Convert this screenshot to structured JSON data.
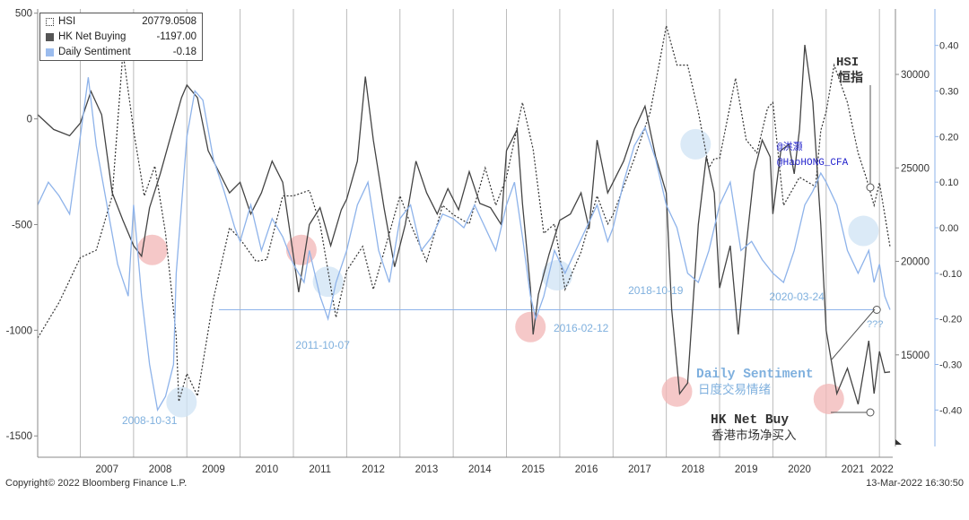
{
  "chart_data": {
    "type": "line",
    "x_tick_labels": [
      "2007",
      "2008",
      "2009",
      "2010",
      "2011",
      "2012",
      "2013",
      "2014",
      "2015",
      "2016",
      "2017",
      "2018",
      "2019",
      "2020",
      "2021",
      "2022"
    ],
    "left_axis": {
      "ticks": [
        "500",
        "0",
        "-500",
        "-1000",
        "-1500"
      ],
      "range": [
        -1550,
        520
      ]
    },
    "right_axis_hsi": {
      "ticks": [
        "30000",
        "25000",
        "20000",
        "15000"
      ],
      "range": [
        10100,
        33500
      ]
    },
    "right_axis_sentiment": {
      "ticks": [
        "0.40",
        "0.30",
        "0.20",
        "0.10",
        "0.00",
        "-0.10",
        "-0.20",
        "-0.30",
        "-0.40"
      ],
      "range": [
        -0.48,
        0.48
      ]
    },
    "legend": [
      {
        "name": "HSI",
        "value": "20779.0508"
      },
      {
        "name": "HK Net Buying",
        "value": "-1197.00"
      },
      {
        "name": "Daily Sentiment",
        "value": "-0.18"
      }
    ],
    "series": [
      {
        "name": "HSI",
        "axis": "hsi",
        "style": "dotted",
        "color": "#333333",
        "points": [
          [
            2006.2,
            15900
          ],
          [
            2006.6,
            17800
          ],
          [
            2007.0,
            20200
          ],
          [
            2007.3,
            20600
          ],
          [
            2007.6,
            23500
          ],
          [
            2007.8,
            31200
          ],
          [
            2008.0,
            27000
          ],
          [
            2008.2,
            23500
          ],
          [
            2008.4,
            25100
          ],
          [
            2008.6,
            21500
          ],
          [
            2008.8,
            16000
          ],
          [
            2008.85,
            12500
          ],
          [
            2009.0,
            14000
          ],
          [
            2009.2,
            12800
          ],
          [
            2009.5,
            18000
          ],
          [
            2009.8,
            21800
          ],
          [
            2010.0,
            21200
          ],
          [
            2010.3,
            20000
          ],
          [
            2010.5,
            20100
          ],
          [
            2010.8,
            23500
          ],
          [
            2011.0,
            23500
          ],
          [
            2011.3,
            23800
          ],
          [
            2011.5,
            22000
          ],
          [
            2011.8,
            17000
          ],
          [
            2012.0,
            19500
          ],
          [
            2012.3,
            20800
          ],
          [
            2012.5,
            18500
          ],
          [
            2012.8,
            21500
          ],
          [
            2013.0,
            23500
          ],
          [
            2013.2,
            22000
          ],
          [
            2013.5,
            20000
          ],
          [
            2013.8,
            23000
          ],
          [
            2014.0,
            22500
          ],
          [
            2014.3,
            22000
          ],
          [
            2014.6,
            25000
          ],
          [
            2014.8,
            23000
          ],
          [
            2015.0,
            24500
          ],
          [
            2015.3,
            28500
          ],
          [
            2015.5,
            26000
          ],
          [
            2015.7,
            21500
          ],
          [
            2015.9,
            22000
          ],
          [
            2016.1,
            18500
          ],
          [
            2016.4,
            20500
          ],
          [
            2016.7,
            23500
          ],
          [
            2016.9,
            22000
          ],
          [
            2017.0,
            22500
          ],
          [
            2017.4,
            25500
          ],
          [
            2017.7,
            28000
          ],
          [
            2018.0,
            32600
          ],
          [
            2018.2,
            30500
          ],
          [
            2018.4,
            30500
          ],
          [
            2018.6,
            28000
          ],
          [
            2018.8,
            25000
          ],
          [
            2018.9,
            25500
          ],
          [
            2019.0,
            25500
          ],
          [
            2019.3,
            29800
          ],
          [
            2019.5,
            26500
          ],
          [
            2019.7,
            25800
          ],
          [
            2019.9,
            28200
          ],
          [
            2020.0,
            28500
          ],
          [
            2020.2,
            23000
          ],
          [
            2020.5,
            24500
          ],
          [
            2020.8,
            24000
          ],
          [
            2020.9,
            27000
          ],
          [
            2021.0,
            28000
          ],
          [
            2021.15,
            30500
          ],
          [
            2021.4,
            28500
          ],
          [
            2021.6,
            25800
          ],
          [
            2021.75,
            24500
          ],
          [
            2021.9,
            23000
          ],
          [
            2022.0,
            24200
          ],
          [
            2022.1,
            22500
          ],
          [
            2022.2,
            20779
          ]
        ]
      },
      {
        "name": "HK Net Buying",
        "axis": "left",
        "style": "solid",
        "color": "#444444",
        "points": [
          [
            2006.2,
            20
          ],
          [
            2006.5,
            -50
          ],
          [
            2006.8,
            -80
          ],
          [
            2007.0,
            -20
          ],
          [
            2007.2,
            130
          ],
          [
            2007.4,
            20
          ],
          [
            2007.6,
            -350
          ],
          [
            2007.8,
            -480
          ],
          [
            2008.0,
            -600
          ],
          [
            2008.15,
            -650
          ],
          [
            2008.3,
            -420
          ],
          [
            2008.5,
            -260
          ],
          [
            2008.7,
            -80
          ],
          [
            2008.9,
            100
          ],
          [
            2009.0,
            160
          ],
          [
            2009.2,
            100
          ],
          [
            2009.4,
            -150
          ],
          [
            2009.6,
            -250
          ],
          [
            2009.8,
            -350
          ],
          [
            2010.0,
            -300
          ],
          [
            2010.2,
            -450
          ],
          [
            2010.4,
            -350
          ],
          [
            2010.6,
            -200
          ],
          [
            2010.8,
            -300
          ],
          [
            2010.95,
            -560
          ],
          [
            2011.1,
            -820
          ],
          [
            2011.3,
            -500
          ],
          [
            2011.5,
            -420
          ],
          [
            2011.7,
            -600
          ],
          [
            2011.9,
            -430
          ],
          [
            2012.0,
            -380
          ],
          [
            2012.2,
            -200
          ],
          [
            2012.35,
            200
          ],
          [
            2012.5,
            -100
          ],
          [
            2012.7,
            -420
          ],
          [
            2012.9,
            -700
          ],
          [
            2013.1,
            -500
          ],
          [
            2013.3,
            -200
          ],
          [
            2013.5,
            -350
          ],
          [
            2013.7,
            -450
          ],
          [
            2013.9,
            -330
          ],
          [
            2014.1,
            -430
          ],
          [
            2014.3,
            -250
          ],
          [
            2014.5,
            -400
          ],
          [
            2014.7,
            -420
          ],
          [
            2014.9,
            -500
          ],
          [
            2015.0,
            -150
          ],
          [
            2015.2,
            -50
          ],
          [
            2015.3,
            -400
          ],
          [
            2015.45,
            -800
          ],
          [
            2015.5,
            -1020
          ],
          [
            2015.6,
            -830
          ],
          [
            2015.8,
            -640
          ],
          [
            2016.0,
            -480
          ],
          [
            2016.2,
            -450
          ],
          [
            2016.4,
            -350
          ],
          [
            2016.55,
            -520
          ],
          [
            2016.7,
            -100
          ],
          [
            2016.9,
            -350
          ],
          [
            2017.0,
            -300
          ],
          [
            2017.2,
            -200
          ],
          [
            2017.4,
            -50
          ],
          [
            2017.6,
            60
          ],
          [
            2017.8,
            -180
          ],
          [
            2018.0,
            -350
          ],
          [
            2018.1,
            -900
          ],
          [
            2018.25,
            -1300
          ],
          [
            2018.4,
            -1250
          ],
          [
            2018.6,
            -500
          ],
          [
            2018.75,
            -180
          ],
          [
            2018.9,
            -350
          ],
          [
            2019.0,
            -800
          ],
          [
            2019.2,
            -600
          ],
          [
            2019.35,
            -1020
          ],
          [
            2019.5,
            -600
          ],
          [
            2019.65,
            -250
          ],
          [
            2019.8,
            -100
          ],
          [
            2019.95,
            -180
          ],
          [
            2020.0,
            -450
          ],
          [
            2020.15,
            -150
          ],
          [
            2020.3,
            -120
          ],
          [
            2020.4,
            -260
          ],
          [
            2020.5,
            -50
          ],
          [
            2020.6,
            350
          ],
          [
            2020.75,
            80
          ],
          [
            2020.9,
            -500
          ],
          [
            2021.0,
            -1000
          ],
          [
            2021.2,
            -1300
          ],
          [
            2021.4,
            -1180
          ],
          [
            2021.6,
            -1350
          ],
          [
            2021.8,
            -1050
          ],
          [
            2021.9,
            -1300
          ],
          [
            2022.0,
            -1100
          ],
          [
            2022.1,
            -1200
          ],
          [
            2022.2,
            -1197
          ]
        ]
      },
      {
        "name": "Daily Sentiment",
        "axis": "sentiment",
        "style": "solid",
        "color": "#8eb3ea",
        "points": [
          [
            2006.2,
            0.05
          ],
          [
            2006.4,
            0.1
          ],
          [
            2006.6,
            0.07
          ],
          [
            2006.8,
            0.03
          ],
          [
            2007.0,
            0.2
          ],
          [
            2007.15,
            0.33
          ],
          [
            2007.3,
            0.18
          ],
          [
            2007.5,
            0.05
          ],
          [
            2007.7,
            -0.08
          ],
          [
            2007.9,
            -0.15
          ],
          [
            2008.0,
            0.05
          ],
          [
            2008.15,
            -0.15
          ],
          [
            2008.3,
            -0.3
          ],
          [
            2008.45,
            -0.4
          ],
          [
            2008.6,
            -0.37
          ],
          [
            2008.75,
            -0.3
          ],
          [
            2008.8,
            -0.1
          ],
          [
            2009.0,
            0.2
          ],
          [
            2009.15,
            0.3
          ],
          [
            2009.3,
            0.28
          ],
          [
            2009.5,
            0.15
          ],
          [
            2009.7,
            0.08
          ],
          [
            2009.9,
            0.0
          ],
          [
            2010.0,
            -0.03
          ],
          [
            2010.2,
            0.05
          ],
          [
            2010.4,
            -0.05
          ],
          [
            2010.6,
            0.02
          ],
          [
            2010.8,
            -0.02
          ],
          [
            2011.0,
            -0.08
          ],
          [
            2011.2,
            -0.12
          ],
          [
            2011.3,
            -0.05
          ],
          [
            2011.5,
            -0.15
          ],
          [
            2011.65,
            -0.2
          ],
          [
            2011.8,
            -0.12
          ],
          [
            2012.0,
            -0.05
          ],
          [
            2012.2,
            0.05
          ],
          [
            2012.4,
            0.1
          ],
          [
            2012.6,
            -0.05
          ],
          [
            2012.8,
            -0.12
          ],
          [
            2013.0,
            0.02
          ],
          [
            2013.2,
            0.05
          ],
          [
            2013.4,
            -0.05
          ],
          [
            2013.6,
            -0.02
          ],
          [
            2013.8,
            0.03
          ],
          [
            2014.0,
            0.02
          ],
          [
            2014.2,
            0.0
          ],
          [
            2014.4,
            0.05
          ],
          [
            2014.6,
            0.0
          ],
          [
            2014.8,
            -0.05
          ],
          [
            2015.0,
            0.05
          ],
          [
            2015.15,
            0.1
          ],
          [
            2015.3,
            -0.02
          ],
          [
            2015.45,
            -0.15
          ],
          [
            2015.55,
            -0.2
          ],
          [
            2015.7,
            -0.15
          ],
          [
            2015.9,
            -0.05
          ],
          [
            2016.1,
            -0.1
          ],
          [
            2016.3,
            -0.05
          ],
          [
            2016.5,
            0.0
          ],
          [
            2016.7,
            0.05
          ],
          [
            2016.9,
            -0.03
          ],
          [
            2017.0,
            0.0
          ],
          [
            2017.2,
            0.1
          ],
          [
            2017.4,
            0.18
          ],
          [
            2017.6,
            0.22
          ],
          [
            2017.8,
            0.15
          ],
          [
            2018.0,
            0.05
          ],
          [
            2018.2,
            0.0
          ],
          [
            2018.4,
            -0.1
          ],
          [
            2018.6,
            -0.12
          ],
          [
            2018.8,
            -0.05
          ],
          [
            2019.0,
            0.05
          ],
          [
            2019.2,
            0.1
          ],
          [
            2019.4,
            -0.05
          ],
          [
            2019.6,
            -0.03
          ],
          [
            2019.8,
            -0.07
          ],
          [
            2020.0,
            -0.1
          ],
          [
            2020.2,
            -0.12
          ],
          [
            2020.4,
            -0.05
          ],
          [
            2020.6,
            0.05
          ],
          [
            2020.75,
            0.08
          ],
          [
            2020.9,
            0.12
          ],
          [
            2021.0,
            0.1
          ],
          [
            2021.2,
            0.05
          ],
          [
            2021.4,
            -0.05
          ],
          [
            2021.6,
            -0.1
          ],
          [
            2021.8,
            -0.05
          ],
          [
            2021.9,
            -0.12
          ],
          [
            2022.0,
            -0.08
          ],
          [
            2022.1,
            -0.15
          ],
          [
            2022.2,
            -0.18
          ]
        ]
      }
    ],
    "circles": [
      {
        "x": 2008.35,
        "y": -620,
        "fill": "#f2b5b5"
      },
      {
        "x": 2011.15,
        "y": -620,
        "fill": "#f2b5b5"
      },
      {
        "x": 2015.45,
        "y": -985,
        "fill": "#f2b5b5"
      },
      {
        "x": 2018.2,
        "y": -1290,
        "fill": "#f2b5b5"
      },
      {
        "x": 2021.05,
        "y": -1325,
        "fill": "#f2b5b5"
      },
      {
        "x": 2008.9,
        "y": -1340,
        "fill": "#cfe3f4"
      },
      {
        "x": 2011.65,
        "y": -770,
        "fill": "#cfe3f4"
      },
      {
        "x": 2015.95,
        "y": -740,
        "fill": "#cfe3f4"
      },
      {
        "x": 2018.55,
        "y": -120,
        "fill": "#cfe3f4"
      },
      {
        "x": 2021.7,
        "y": -530,
        "fill": "#cfe3f4"
      }
    ],
    "sentiment_reference_line": -0.18,
    "annotations": {
      "date_2008": "2008-10-31",
      "date_2011": "2011-10-07",
      "date_2016": "2016-02-12",
      "date_2018": "2018-10-19",
      "date_2020": "2020-03-24",
      "watermark_line1": "@洪灏",
      "watermark_line2": "@HaoHONG_CFA",
      "hsi_en": "HSI",
      "hsi_cn": "恒指",
      "sentiment_en": "Daily Sentiment",
      "sentiment_cn": "日度交易情绪",
      "netbuy_en": "HK Net Buy",
      "netbuy_cn": "香港市场净买入",
      "question": "???"
    },
    "colors": {
      "blue_text": "#7fb0de",
      "watermark": "#2222cc",
      "dark_text": "#333333"
    }
  },
  "footer": {
    "copyright": "Copyright© 2022 Bloomberg Finance L.P.",
    "timestamp": "13-Mar-2022 16:30:50"
  }
}
